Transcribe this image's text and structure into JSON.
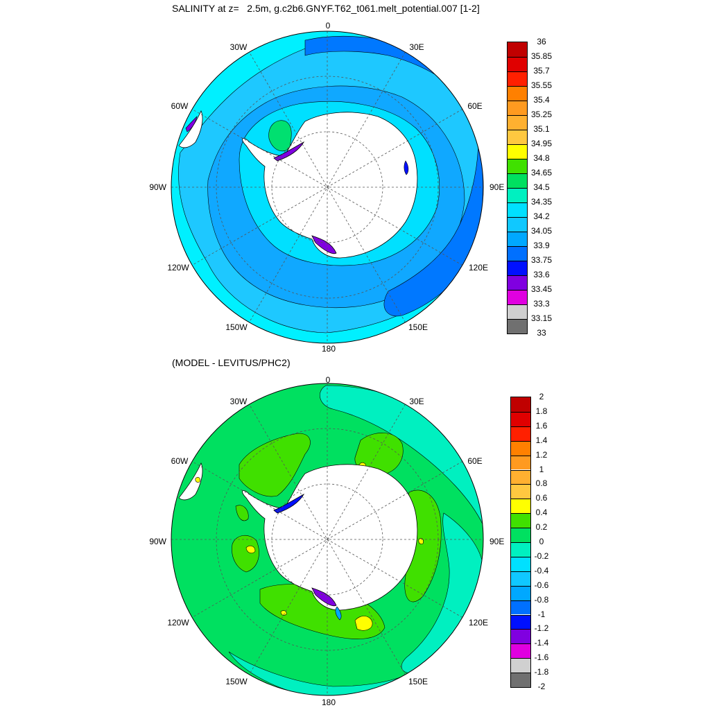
{
  "top": {
    "title": "SALINITY at z=   2.5m, g.c2b6.GNYF.T62_t061.melt_potential.007 [1-2]",
    "lon_labels": [
      "0",
      "30E",
      "60E",
      "90E",
      "120E",
      "150E",
      "180",
      "150W",
      "120W",
      "90W",
      "60W",
      "30W"
    ],
    "colorbar": {
      "labels": [
        "36",
        "35.85",
        "35.7",
        "35.55",
        "35.4",
        "35.25",
        "35.1",
        "34.95",
        "34.8",
        "34.65",
        "34.5",
        "34.35",
        "34.2",
        "34.05",
        "33.9",
        "33.75",
        "33.6",
        "33.45",
        "33.3",
        "33.15",
        "33"
      ],
      "colors": [
        "#c00000",
        "#e00000",
        "#ff2000",
        "#ff8000",
        "#ff9a20",
        "#ffb030",
        "#ffc840",
        "#ffff00",
        "#40e000",
        "#00e060",
        "#00f0c0",
        "#00e0ff",
        "#10c8ff",
        "#00a8ff",
        "#0070ff",
        "#0010ff",
        "#8000e0",
        "#e000e0",
        "#d0d0d0",
        "#707070"
      ]
    }
  },
  "bottom": {
    "title": "(MODEL - LEVITUS/PHC2)",
    "lon_labels": [
      "0",
      "30E",
      "60E",
      "90E",
      "120E",
      "150E",
      "180",
      "150W",
      "120W",
      "90W",
      "60W",
      "30W"
    ],
    "colorbar": {
      "labels": [
        "2",
        "1.8",
        "1.6",
        "1.4",
        "1.2",
        "1",
        "0.8",
        "0.6",
        "0.4",
        "0.2",
        "0",
        "-0.2",
        "-0.4",
        "-0.6",
        "-0.8",
        "-1",
        "-1.2",
        "-1.4",
        "-1.6",
        "-1.8",
        "-2"
      ],
      "colors": [
        "#c00000",
        "#e00000",
        "#ff2000",
        "#ff8000",
        "#ff9a20",
        "#ffb030",
        "#ffc840",
        "#ffff00",
        "#40e000",
        "#00e060",
        "#00f0c0",
        "#00e0ff",
        "#10c8ff",
        "#00a8ff",
        "#0070ff",
        "#0010ff",
        "#8000e0",
        "#e000e0",
        "#d0d0d0",
        "#707070"
      ]
    }
  }
}
